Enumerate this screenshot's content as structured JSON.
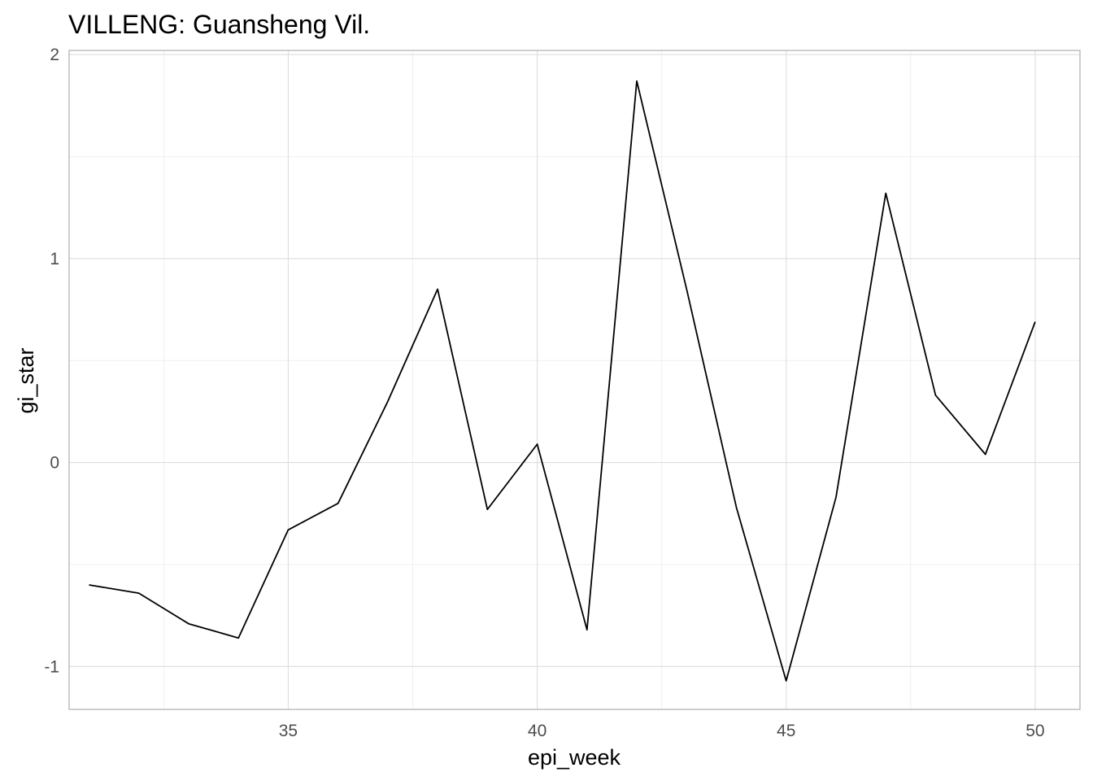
{
  "chart_data": {
    "type": "line",
    "title": "VILLENG: Guansheng Vil.",
    "xlabel": "epi_week",
    "ylabel": "gi_star",
    "xlim": [
      30.6,
      50.9
    ],
    "ylim": [
      -1.21,
      2.02
    ],
    "x_ticks": [
      35,
      40,
      45,
      50
    ],
    "y_ticks": [
      -1,
      0,
      1,
      2
    ],
    "grid": true,
    "series": [
      {
        "x": [
          31,
          32,
          33,
          34,
          35,
          36,
          37,
          38,
          39,
          40,
          41,
          42,
          43,
          44,
          45,
          46,
          47,
          48,
          49,
          50
        ],
        "values": [
          -0.6,
          -0.64,
          -0.79,
          -0.86,
          -0.33,
          -0.2,
          0.3,
          0.85,
          -0.23,
          0.09,
          -0.82,
          1.87,
          0.85,
          -0.22,
          -1.07,
          -0.17,
          1.32,
          0.33,
          0.04,
          0.69
        ]
      }
    ],
    "colors": {
      "line": "#000000",
      "grid": "#dedede",
      "border": "#b3b3b3"
    }
  }
}
